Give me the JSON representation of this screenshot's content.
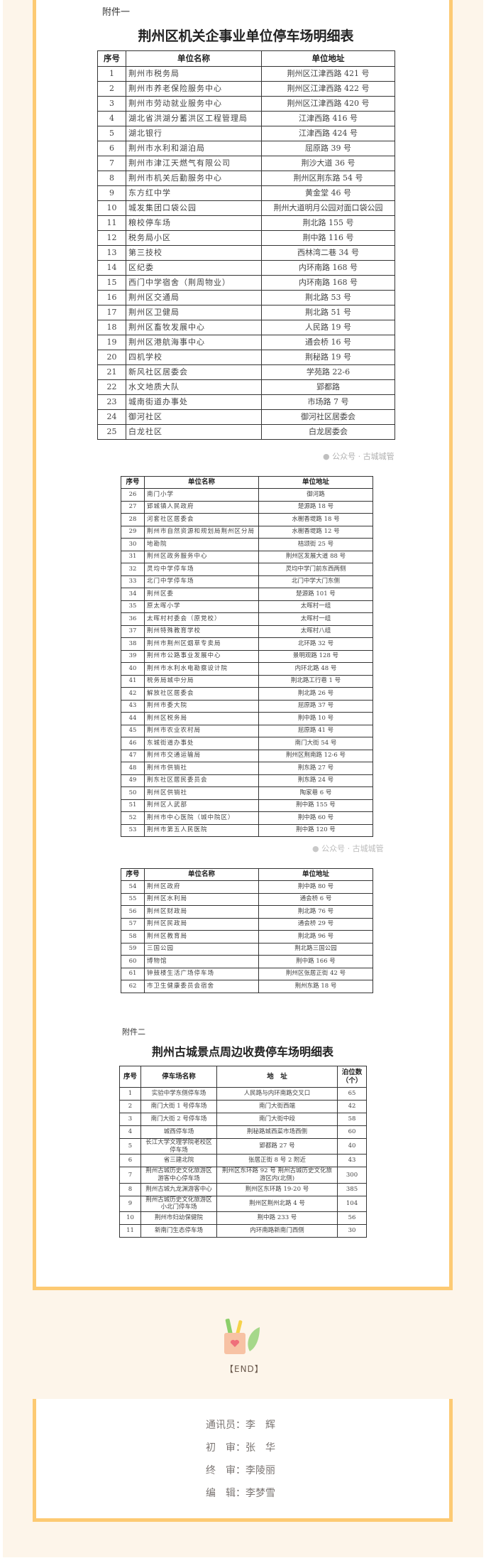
{
  "colors": {
    "frame_border": "#fdca73",
    "background": "#fdf5ea"
  },
  "attachment1": {
    "label": "附件一",
    "title": "荆州区机关企事业单位停车场明细表",
    "headers": [
      "序号",
      "单位名称",
      "单位地址"
    ],
    "rows": [
      [
        "1",
        "荆州市税务局",
        "荆州区江津西路 421 号"
      ],
      [
        "2",
        "荆州市养老保险服务中心",
        "荆州区江津西路 422 号"
      ],
      [
        "3",
        "荆州市劳动就业服务中心",
        "荆州区江津西路 420 号"
      ],
      [
        "4",
        "湖北省洪湖分蓄洪区工程管理局",
        "江津西路 416 号"
      ],
      [
        "5",
        "湖北银行",
        "江津西路 424 号"
      ],
      [
        "6",
        "荆州市水利和湖泊局",
        "屈原路 39 号"
      ],
      [
        "7",
        "荆州市津江天燃气有限公司",
        "荆沙大道 36 号"
      ],
      [
        "8",
        "荆州市机关后勤服务中心",
        "荆州区荆东路 54 号"
      ],
      [
        "9",
        "东方红中学",
        "黄金堂 46 号"
      ],
      [
        "10",
        "城发集团口袋公园",
        "荆州大道明月公园对面口袋公园"
      ],
      [
        "11",
        "粮校停车场",
        "荆北路 155 号"
      ],
      [
        "12",
        "税务局小区",
        "荆中路 116 号"
      ],
      [
        "13",
        "第三技校",
        "西林湾二巷 34 号"
      ],
      [
        "14",
        "区纪委",
        "内环南路 168 号"
      ],
      [
        "15",
        "西门中学宿舍（荆周物业）",
        "内环南路 168 号"
      ],
      [
        "16",
        "荆州区交通局",
        "荆北路 53 号"
      ],
      [
        "17",
        "荆州区卫健局",
        "荆北路 51 号"
      ],
      [
        "18",
        "荆州区畜牧发展中心",
        "人民路 19 号"
      ],
      [
        "19",
        "荆州区港航海事中心",
        "通会桥 16 号"
      ],
      [
        "20",
        "四机学校",
        "荆秘路 19 号"
      ],
      [
        "21",
        "新风社区居委会",
        "学苑路 22-6"
      ],
      [
        "22",
        "水文地质大队",
        "郢都路"
      ],
      [
        "23",
        "城南街道办事处",
        "市场路 7 号"
      ],
      [
        "24",
        "御河社区",
        "御河社区居委会"
      ],
      [
        "25",
        "白龙社区",
        "白龙居委会"
      ]
    ]
  },
  "attachment1_part2": {
    "headers": [
      "序号",
      "单位名称",
      "单位地址"
    ],
    "rows": [
      [
        "26",
        "南门小学",
        "御河路"
      ],
      [
        "27",
        "郢城镇人民政府",
        "楚源路 18 号"
      ],
      [
        "28",
        "河套社区居委会",
        "水榭香堤路 18 号"
      ],
      [
        "29",
        "荆州市自然资源和规划局荆州区分局",
        "水榭香堤路 12 号"
      ],
      [
        "30",
        "地勘院",
        "桔颂街 25 号"
      ],
      [
        "31",
        "荆州区政务服务中心",
        "荆州区发展大道 88 号"
      ],
      [
        "32",
        "灵均中学停车场",
        "灵均中学门前东西两侧"
      ],
      [
        "33",
        "北门中学停车场",
        "北门中学大门东侧"
      ],
      [
        "34",
        "荆州区委",
        "楚源路 101 号"
      ],
      [
        "35",
        "原太晖小学",
        "太晖村一组"
      ],
      [
        "36",
        "太晖村村委会（原党校）",
        "太晖村一组"
      ],
      [
        "37",
        "荆州特殊教育学校",
        "太晖村八组"
      ],
      [
        "38",
        "荆州市荆州区烟草专卖局",
        "北环路 32 号"
      ],
      [
        "39",
        "荆州市公路事业发展中心",
        "景明观路 128 号"
      ],
      [
        "40",
        "荆州市水利水电勘察设计院",
        "内环北路 48 号"
      ],
      [
        "41",
        "税务局城中分局",
        "荆北路工行巷 1 号"
      ],
      [
        "42",
        "解放社区居委会",
        "荆北路 26 号"
      ],
      [
        "43",
        "荆州市委大院",
        "屈原路 37 号"
      ],
      [
        "44",
        "荆州区税务局",
        "荆中路 10 号"
      ],
      [
        "45",
        "荆州市农业农村局",
        "屈原路 41 号"
      ],
      [
        "46",
        "东城街道办事处",
        "南门大街 54 号"
      ],
      [
        "47",
        "荆州市交通运输局",
        "荆州区荆南路 12-6 号"
      ],
      [
        "48",
        "荆州市供销社",
        "荆东路 27 号"
      ],
      [
        "49",
        "荆东社区居民委员会",
        "荆东路 24 号"
      ],
      [
        "50",
        "荆州区供销社",
        "陶家巷 6 号"
      ],
      [
        "51",
        "荆州区人武部",
        "荆中路 155 号"
      ],
      [
        "52",
        "荆州市中心医院（城中院区）",
        "荆中路 60 号"
      ],
      [
        "53",
        "荆州市第五人民医院",
        "荆中路 120 号"
      ]
    ]
  },
  "attachment1_part3": {
    "headers": [
      "序号",
      "单位名称",
      "单位地址"
    ],
    "rows": [
      [
        "54",
        "荆州区政府",
        "荆中路 80 号"
      ],
      [
        "55",
        "荆州区水利局",
        "通会桥 6 号"
      ],
      [
        "56",
        "荆州区财政局",
        "荆北路 76 号"
      ],
      [
        "57",
        "荆州区民政局",
        "通会桥 29 号"
      ],
      [
        "58",
        "荆州区教育局",
        "荆北路 96 号"
      ],
      [
        "59",
        "三国公园",
        "荆北路三国公园"
      ],
      [
        "60",
        "博物馆",
        "荆中路 166 号"
      ],
      [
        "61",
        "钟鼓楼生活广场停车场",
        "荆州区张居正街 42 号"
      ],
      [
        "62",
        "市卫生健康委员会宿舍",
        "荆州东路 18 号"
      ]
    ]
  },
  "attachment2": {
    "label": "附件二",
    "title": "荆州古城景点周边收费停车场明细表",
    "headers": [
      "序号",
      "停车场名称",
      "地　址",
      "泊位数（个）"
    ],
    "rows": [
      [
        "1",
        "实验中学东侧停车场",
        "人民路与内环南路交叉口",
        "65"
      ],
      [
        "2",
        "南门大街 1 号停车场",
        "南门大街西端",
        "42"
      ],
      [
        "3",
        "南门大街 2 号停车场",
        "南门大街中段",
        "58"
      ],
      [
        "4",
        "城西停车场",
        "荆秘路城西菜市场西侧",
        "60"
      ],
      [
        "5",
        "长江大学文理学院老校区停车场",
        "郢都路 27 号",
        "40"
      ],
      [
        "6",
        "省三建北院",
        "张居正街 8 号 2 附近",
        "43"
      ],
      [
        "7",
        "荆州古城历史文化旅游区游客中心停车场",
        "荆州区东环路 92 号 荆州古城历史文化旅游区内(北侧)",
        "300"
      ],
      [
        "8",
        "荆州古城九龙渊游客中心",
        "荆州区东环路 19-20 号",
        "385"
      ],
      [
        "9",
        "荆州古城历史文化旅游区小北门停车场",
        "荆州区荆州北路 4 号",
        "104"
      ],
      [
        "10",
        "荆州市妇幼保健院",
        "荆中路 233 号",
        "56"
      ],
      [
        "11",
        "新南门生态停车场",
        "内环南路新南门西侧",
        "30"
      ]
    ]
  },
  "watermark": "公众号 · 古城城管",
  "end_label": "【END】",
  "credits": [
    {
      "role": "通讯员：",
      "name": "李　辉"
    },
    {
      "role": "初　审：",
      "name": "张　华"
    },
    {
      "role": "终　审：",
      "name": "李陵丽"
    },
    {
      "role": "编　辑：",
      "name": "李梦雪"
    }
  ]
}
